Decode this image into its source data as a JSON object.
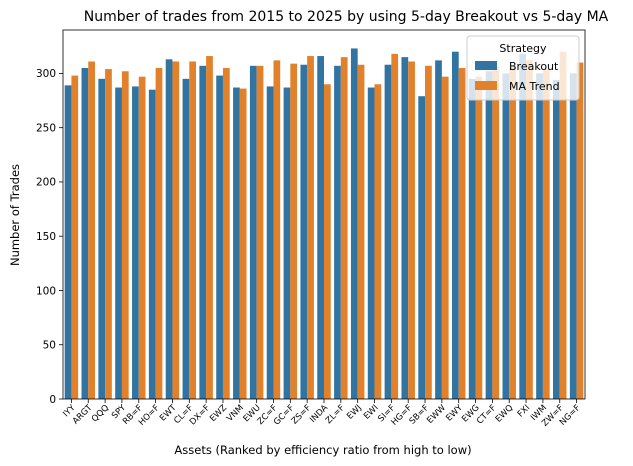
{
  "chart_data": {
    "type": "bar",
    "title": "Number of trades from 2015 to 2025 by using 5-day Breakout vs 5-day MA",
    "xlabel": "Assets (Ranked by efficiency ratio from high to low)",
    "ylabel": "Number of Trades",
    "ylim": [
      0,
      340
    ],
    "yticks": [
      0,
      50,
      100,
      150,
      200,
      250,
      300
    ],
    "grid": false,
    "legend": {
      "title": "Strategy",
      "position": "top-right"
    },
    "categories": [
      "IYY",
      "ARGT",
      "QQQ",
      "SPY",
      "RB=F",
      "HO=F",
      "EWT",
      "CL=F",
      "DX=F",
      "EWZ",
      "VNM",
      "EWU",
      "ZC=F",
      "GC=F",
      "ZS=F",
      "INDA",
      "ZL=F",
      "EWJ",
      "EWI",
      "SI=F",
      "HG=F",
      "SB=F",
      "EWW",
      "EWY",
      "EWG",
      "CT=F",
      "EWQ",
      "FXI",
      "IWM",
      "ZW=F",
      "NG=F"
    ],
    "series": [
      {
        "name": "Breakout",
        "color": "#3274a1",
        "values": [
          289,
          305,
          295,
          287,
          288,
          285,
          313,
          295,
          307,
          298,
          287,
          307,
          288,
          287,
          308,
          316,
          307,
          323,
          287,
          308,
          315,
          279,
          312,
          320,
          295,
          302,
          300,
          318,
          300,
          294,
          300
        ]
      },
      {
        "name": "MA Trend",
        "color": "#e1812c",
        "values": [
          298,
          311,
          304,
          302,
          297,
          305,
          311,
          311,
          316,
          305,
          286,
          307,
          312,
          309,
          316,
          290,
          315,
          308,
          290,
          318,
          311,
          307,
          297,
          305,
          297,
          306,
          306,
          312,
          304,
          320,
          310
        ]
      }
    ]
  }
}
